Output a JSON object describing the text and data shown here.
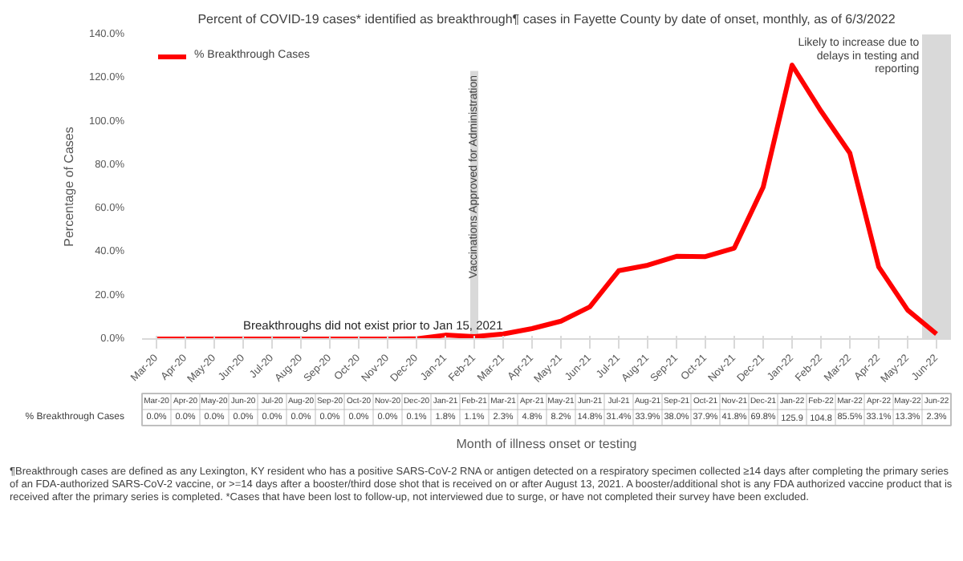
{
  "chart_data": {
    "type": "line",
    "title": "Percent of COVID-19 cases* identified as breakthrough¶ cases in Fayette County by date of onset, monthly, as of 6/3/2022",
    "xlabel": "Month of illness onset or testing",
    "ylabel": "Percentage of Cases",
    "categories": [
      "Mar-20",
      "Apr-20",
      "May-20",
      "Jun-20",
      "Jul-20",
      "Aug-20",
      "Sep-20",
      "Oct-20",
      "Nov-20",
      "Dec-20",
      "Jan-21",
      "Feb-21",
      "Mar-21",
      "Apr-21",
      "May-21",
      "Jun-21",
      "Jul-21",
      "Aug-21",
      "Sep-21",
      "Oct-21",
      "Nov-21",
      "Dec-21",
      "Jan-22",
      "Feb-22",
      "Mar-22",
      "Apr-22",
      "May-22",
      "Jun-22"
    ],
    "series": [
      {
        "name": "% Breakthrough Cases",
        "color": "#ff0000",
        "values": [
          0.0,
          0.0,
          0.0,
          0.0,
          0.0,
          0.0,
          0.0,
          0.0,
          0.0,
          0.1,
          1.8,
          1.1,
          2.3,
          4.8,
          8.2,
          14.8,
          31.4,
          33.9,
          38.0,
          37.9,
          41.8,
          69.8,
          125.9,
          104.8,
          85.5,
          33.1,
          13.3,
          2.3
        ],
        "value_labels": [
          "0.0%",
          "0.0%",
          "0.0%",
          "0.0%",
          "0.0%",
          "0.0%",
          "0.0%",
          "0.0%",
          "0.0%",
          "0.1%",
          "1.8%",
          "1.1%",
          "2.3%",
          "4.8%",
          "8.2%",
          "14.8%",
          "31.4%",
          "33.9%",
          "38.0%",
          "37.9%",
          "41.8%",
          "69.8%",
          "125.9",
          "104.8",
          "85.5%",
          "33.1%",
          "13.3%",
          "2.3%"
        ]
      }
    ],
    "ylim": [
      0,
      140
    ],
    "yticks": [
      {
        "value": 0,
        "label": "0.0%"
      },
      {
        "value": 20,
        "label": "20.0%"
      },
      {
        "value": 40,
        "label": "40.0%"
      },
      {
        "value": 60,
        "label": "60.0%"
      },
      {
        "value": 80,
        "label": "80.0%"
      },
      {
        "value": 100,
        "label": "100.0%"
      },
      {
        "value": 120,
        "label": "120.0%"
      },
      {
        "value": 140,
        "label": "140.0%"
      }
    ],
    "ref_lines": [
      {
        "axis": "x",
        "value": "Feb-21",
        "label": "Vaccinations Approved for Administration",
        "color": "#d9d9d9"
      }
    ],
    "bands": [
      {
        "axis": "x",
        "from": "Jun-22",
        "to": "Jun-22",
        "label": "Likely to increase due to delays in testing and reporting",
        "color": "#d9d9d9"
      }
    ],
    "annotations": [
      {
        "text": "Breakthroughs did not exist prior to Jan 15, 2021",
        "x": "Jun-20",
        "y": 0.0
      },
      "¶Breakthrough cases are defined as any Lexington, KY resident who has a positive SARS-CoV-2 RNA or antigen detected on a respiratory specimen collected ≥14 days after completing the primary series of an FDA-authorized SARS-CoV-2 vaccine, or >=14 days after a booster/third dose shot that is received on or after August 13, 2021.  A booster/additional shot is any FDA authorized vaccine product that is received after the primary series is completed. *Cases that have been lost to follow-up, not interviewed due to surge, or have not completed their survey have been excluded."
    ],
    "legend": "top left",
    "grid": false,
    "marker": "none",
    "line_style": "solid"
  }
}
